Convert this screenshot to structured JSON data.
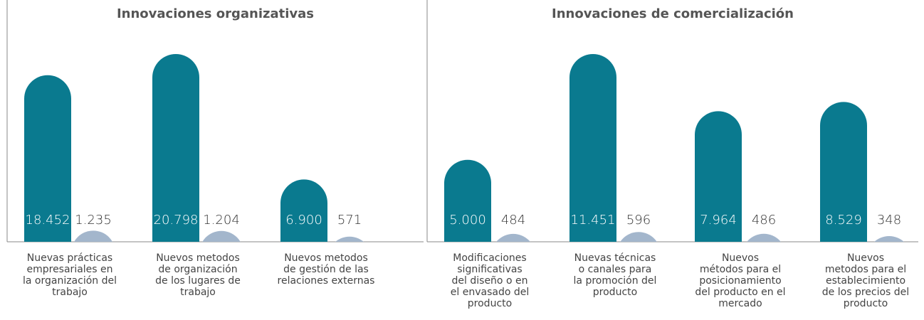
{
  "chart_data": [
    {
      "type": "bar",
      "title": "Innovaciones organizativas",
      "categories": [
        "Nuevas prácticas\nempresariales en\nla organización del\ntrabajo",
        "Nuevos metodos\nde organización\nde los lugares de\ntrabajo",
        "Nuevos metodos\nde gestión de las\nrelaciones externas"
      ],
      "series": [
        {
          "color": "#0a7a8f",
          "values": [
            18452,
            20798,
            6900
          ],
          "value_labels": [
            "18.452",
            "20.798",
            "6.900"
          ]
        },
        {
          "color": "#a3b6cc",
          "values": [
            1235,
            1204,
            571
          ],
          "value_labels": [
            "1.235",
            "1.204",
            "571"
          ]
        }
      ]
    },
    {
      "type": "bar",
      "title": "Innovaciones de comercialización",
      "categories": [
        "Modificaciones\nsignificativas\ndel diseño o en\nel envasado del\nproducto",
        "Nuevas técnicas\no canales para\nla promoción del\nproducto",
        "Nuevos\nmétodos para el\nposicionamiento\ndel producto en el\nmercado",
        "Nuevos\nmetodos para el\nestablecimiento\nde los precios del\nproducto"
      ],
      "series": [
        {
          "color": "#0a7a8f",
          "values": [
            5000,
            11451,
            7964,
            8529
          ],
          "value_labels": [
            "5.000",
            "11.451",
            "7.964",
            "8.529"
          ]
        },
        {
          "color": "#a3b6cc",
          "values": [
            484,
            596,
            486,
            348
          ],
          "value_labels": [
            "484",
            "596",
            "486",
            "348"
          ]
        }
      ]
    }
  ]
}
